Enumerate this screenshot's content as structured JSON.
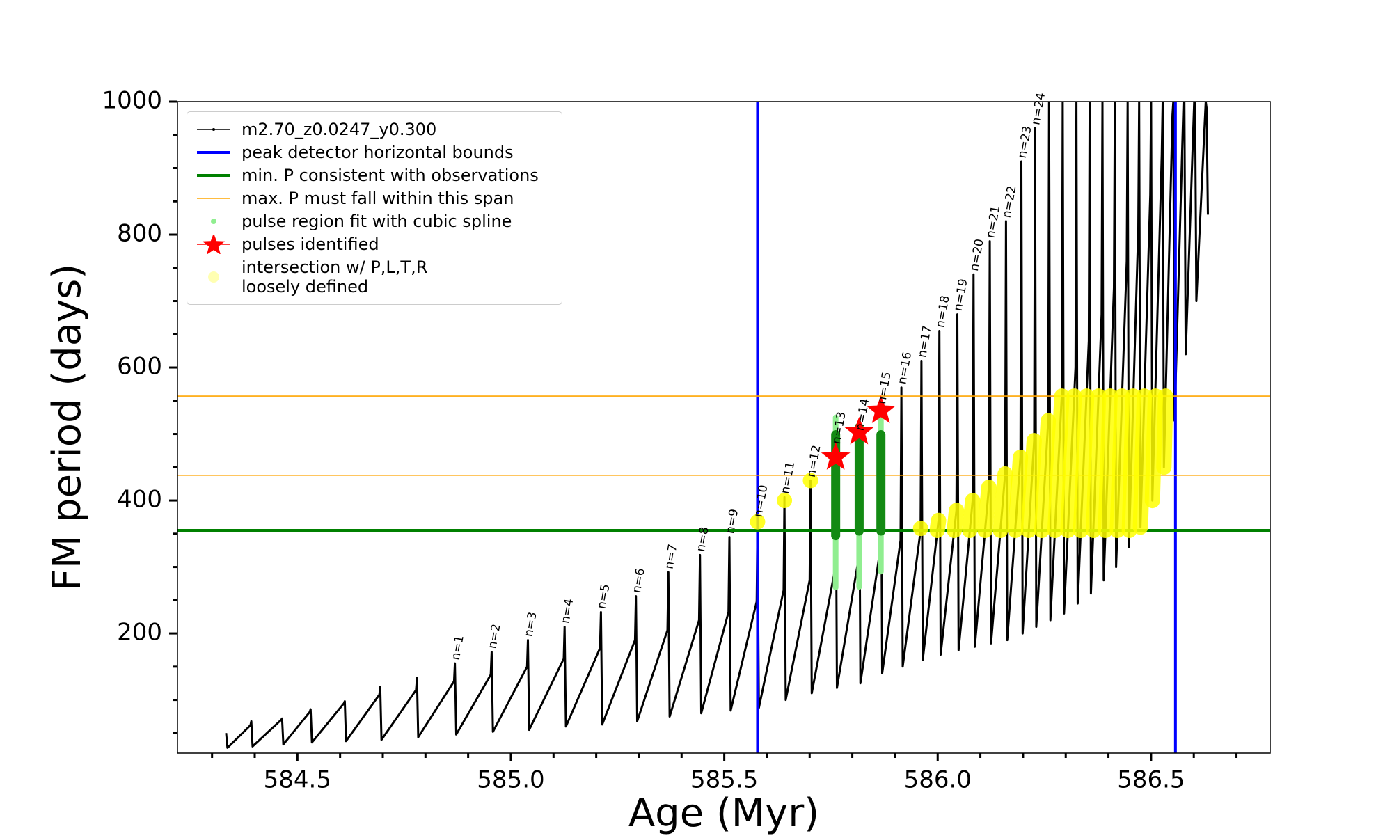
{
  "chart_data": {
    "type": "line",
    "xlabel": "Age (Myr)",
    "ylabel": "FM period (days)",
    "xlim": [
      584.219,
      586.779
    ],
    "ylim": [
      20,
      1000
    ],
    "xticks": [
      584.5,
      {
        "value": 585,
        "label": "585.0"
      },
      585.5,
      {
        "value": 586,
        "label": "586.0"
      },
      586.5
    ],
    "xminorticks": [
      584.3,
      584.4,
      584.6,
      584.7,
      584.8,
      584.9,
      585.1,
      585.2,
      585.3,
      585.4,
      585.6,
      585.7,
      585.8,
      585.9,
      586.1,
      586.2,
      586.3,
      586.4,
      586.6,
      586.7
    ],
    "yticks": [
      200,
      400,
      600,
      800,
      1000
    ],
    "yminorticks": [
      50,
      100,
      150,
      250,
      300,
      350,
      450,
      500,
      550,
      650,
      700,
      750,
      850,
      900,
      950
    ],
    "legend": "upper left",
    "series": [
      {
        "name": "m2.70_z0.0247_y0.300",
        "type": "line",
        "color": "#000000",
        "x": [
          584.333,
          584.336,
          584.39,
          584.392,
          584.395,
          584.462,
          584.464,
          584.467,
          584.529,
          584.531,
          584.534,
          584.609,
          584.611,
          584.614,
          584.692,
          584.694,
          584.697,
          584.778,
          584.78,
          584.783,
          584.867,
          584.869,
          584.872,
          584.953,
          584.955,
          584.958,
          585.038,
          585.04,
          585.043,
          585.124,
          585.126,
          585.129,
          585.209,
          585.211,
          585.214,
          585.291,
          585.293,
          585.296,
          585.367,
          585.369,
          585.372,
          585.441,
          585.443,
          585.446,
          585.51,
          585.512,
          585.515,
          585.576,
          585.578,
          585.581,
          585.639,
          585.641,
          585.644,
          585.7,
          585.702,
          585.705,
          585.759,
          585.761,
          585.764,
          585.814,
          585.816,
          585.819,
          585.865,
          585.867,
          585.87,
          585.913,
          585.915,
          585.918,
          585.96,
          585.962,
          585.965,
          586.002,
          586.004,
          586.007,
          586.044,
          586.046,
          586.049,
          586.082,
          586.084,
          586.087,
          586.12,
          586.122,
          586.125,
          586.158,
          586.16,
          586.163,
          586.194,
          586.196,
          586.199,
          586.226,
          586.228,
          586.231,
          586.259,
          586.261,
          586.264,
          586.291,
          586.293,
          586.296,
          586.323,
          586.325,
          586.328,
          586.354,
          586.356,
          586.359,
          586.384,
          586.386,
          586.389,
          586.413,
          586.415,
          586.418,
          586.443,
          586.445,
          586.448,
          586.47,
          586.472,
          586.475,
          586.498,
          586.5,
          586.503,
          586.525,
          586.527,
          586.53,
          586.55,
          586.552,
          586.555,
          586.576,
          586.578,
          586.581,
          586.601,
          586.603,
          586.606,
          586.628,
          586.63,
          586.633
        ],
        "values": [
          50,
          28,
          62,
          68,
          30,
          70,
          72,
          33,
          82,
          86,
          36,
          95,
          98,
          38,
          108,
          120,
          40,
          115,
          133,
          44,
          128,
          155,
          48,
          138,
          172,
          52,
          150,
          190,
          55,
          162,
          210,
          60,
          178,
          232,
          63,
          190,
          256,
          68,
          205,
          292,
          75,
          220,
          318,
          80,
          232,
          345,
          84,
          248,
          370,
          88,
          265,
          405,
          100,
          280,
          430,
          110,
          295,
          480,
          118,
          310,
          500,
          125,
          325,
          540,
          140,
          340,
          570,
          150,
          355,
          610,
          160,
          370,
          655,
          168,
          385,
          680,
          175,
          400,
          740,
          180,
          420,
          790,
          185,
          440,
          820,
          190,
          465,
          910,
          200,
          490,
          960,
          210,
          520,
          1000,
          220,
          560,
          1000,
          230,
          600,
          1000,
          245,
          640,
          1000,
          260,
          680,
          1000,
          280,
          720,
          1000,
          300,
          760,
          1000,
          330,
          810,
          1000,
          360,
          860,
          1000,
          400,
          920,
          1000,
          450,
          980,
          1000,
          520,
          1000,
          1000,
          620,
          1000,
          1000,
          700,
          1000,
          990,
          830
        ]
      },
      {
        "name": "peak detector horizontal bounds",
        "type": "vline",
        "color": "#0000ff",
        "x": [
          585.578,
          586.557
        ]
      },
      {
        "name": "min. P consistent with observations",
        "type": "hline",
        "color": "#008000",
        "values": [
          355
        ]
      },
      {
        "name": "max. P must fall within this span",
        "type": "hline",
        "color": "#ffa500",
        "values": [
          438,
          557
        ]
      },
      {
        "name": "pulse region fit with cubic spline",
        "type": "range",
        "color": "#90ee90",
        "core_color": "#138a13",
        "x": [
          585.761,
          585.816,
          585.867
        ],
        "low": [
          269,
          270,
          293
        ],
        "high": [
          525,
          505,
          537
        ],
        "core_low": [
          347,
          354,
          354
        ],
        "core_high": [
          499,
          510,
          499
        ]
      },
      {
        "name": "pulses identified",
        "type": "star",
        "color": "#ff0000",
        "x": [
          585.761,
          585.816,
          585.867
        ],
        "values": [
          465,
          503,
          535
        ]
      },
      {
        "name": "intersection w/ P,L,T,R\nloosely defined",
        "type": "segments",
        "color": "#ffff00",
        "x": [
          585.578,
          null,
          585.641,
          null,
          585.702,
          null,
          585.96,
          null,
          585.999,
          586.002,
          null,
          586.039,
          586.044,
          null,
          586.075,
          586.082,
          null,
          586.111,
          586.12,
          null,
          586.147,
          586.158,
          null,
          586.182,
          586.194,
          null,
          586.213,
          586.226,
          null,
          586.244,
          586.259,
          null,
          586.275,
          586.291,
          null,
          586.305,
          586.32,
          null,
          586.335,
          586.349,
          null,
          586.365,
          586.377,
          null,
          586.393,
          586.404,
          null,
          586.421,
          586.432,
          null,
          586.449,
          586.458,
          null,
          586.475,
          586.484,
          null,
          586.503,
          586.51,
          null,
          586.53,
          586.534
        ],
        "values": [
          368,
          null,
          400,
          null,
          430,
          null,
          358,
          null,
          355,
          370,
          null,
          355,
          385,
          null,
          355,
          400,
          null,
          355,
          420,
          null,
          355,
          440,
          null,
          355,
          465,
          null,
          355,
          490,
          null,
          355,
          520,
          null,
          355,
          557,
          null,
          355,
          557,
          null,
          355,
          557,
          null,
          355,
          557,
          null,
          355,
          557,
          null,
          355,
          557,
          null,
          355,
          557,
          null,
          360,
          557,
          null,
          400,
          557,
          null,
          450,
          557
        ]
      }
    ],
    "annotations": [
      {
        "text": "n=1",
        "x": 584.869,
        "y": 155
      },
      {
        "text": "n=2",
        "x": 584.955,
        "y": 172
      },
      {
        "text": "n=3",
        "x": 585.04,
        "y": 190
      },
      {
        "text": "n=4",
        "x": 585.126,
        "y": 210
      },
      {
        "text": "n=5",
        "x": 585.211,
        "y": 232
      },
      {
        "text": "n=6",
        "x": 585.293,
        "y": 256
      },
      {
        "text": "n=7",
        "x": 585.369,
        "y": 292
      },
      {
        "text": "n=8",
        "x": 585.443,
        "y": 318
      },
      {
        "text": "n=9",
        "x": 585.512,
        "y": 345
      },
      {
        "text": "n=10",
        "x": 585.578,
        "y": 370
      },
      {
        "text": "n=11",
        "x": 585.641,
        "y": 405
      },
      {
        "text": "n=12",
        "x": 585.702,
        "y": 430
      },
      {
        "text": "n=13",
        "x": 585.761,
        "y": 480
      },
      {
        "text": "n=14",
        "x": 585.816,
        "y": 500
      },
      {
        "text": "n=15",
        "x": 585.867,
        "y": 540
      },
      {
        "text": "n=16",
        "x": 585.915,
        "y": 570
      },
      {
        "text": "n=17",
        "x": 585.962,
        "y": 610
      },
      {
        "text": "n=18",
        "x": 586.004,
        "y": 655
      },
      {
        "text": "n=19",
        "x": 586.046,
        "y": 680
      },
      {
        "text": "n=20",
        "x": 586.084,
        "y": 740
      },
      {
        "text": "n=21",
        "x": 586.122,
        "y": 790
      },
      {
        "text": "n=22",
        "x": 586.16,
        "y": 820
      },
      {
        "text": "n=23",
        "x": 586.196,
        "y": 910
      },
      {
        "text": "n=24",
        "x": 586.228,
        "y": 960
      }
    ]
  }
}
